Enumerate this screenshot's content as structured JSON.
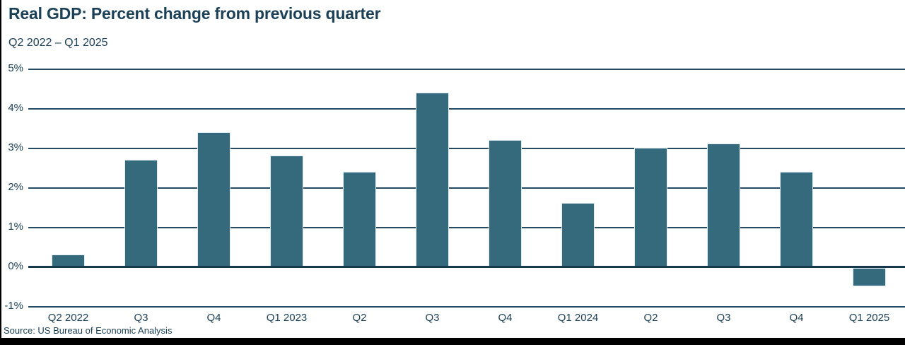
{
  "header": {
    "title": "Real GDP: Percent change from previous quarter",
    "subtitle": "Q2 2022 – Q1 2025"
  },
  "footer": {
    "source": "Source: US Bureau of Economic Analysis"
  },
  "chart_data": {
    "type": "bar",
    "title": "Real GDP: Percent change from previous quarter",
    "subtitle": "Q2 2022 – Q1 2025",
    "source": "Source: US Bureau of Economic Analysis",
    "categories": [
      "Q2 2022",
      "Q3",
      "Q4",
      "Q1 2023",
      "Q2",
      "Q3",
      "Q4",
      "Q1 2024",
      "Q2",
      "Q3",
      "Q4",
      "Q1 2025"
    ],
    "values": [
      0.3,
      2.7,
      3.4,
      2.8,
      2.4,
      4.4,
      3.2,
      1.6,
      3.0,
      3.1,
      2.4,
      -0.5
    ],
    "xlabel": "",
    "ylabel": "",
    "ylim": [
      -1,
      5
    ],
    "yticks": [
      5,
      4,
      3,
      2,
      1,
      0,
      -1
    ],
    "ytick_suffix": "%",
    "grid": true,
    "legend": false,
    "colors": {
      "bar": "#356a7c",
      "bar_stroke": "#dfecf1",
      "text": "#1c4156",
      "gridline": "#244960",
      "zero_line": "#16374d",
      "frame": "#000000"
    }
  }
}
